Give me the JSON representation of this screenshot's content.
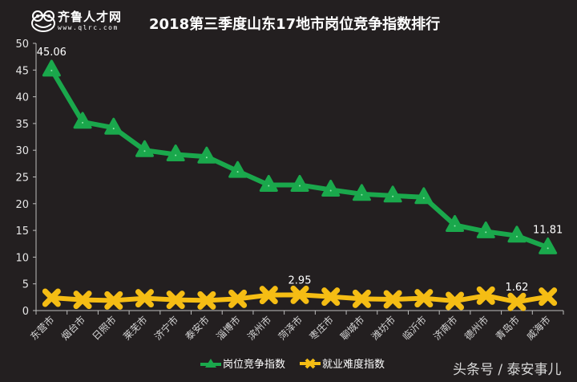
{
  "header": {
    "logo_name": "齐鲁人才网",
    "logo_url": "www.qlrc.com",
    "title": "2018第三季度山东17地市岗位竞争指数排行"
  },
  "watermark": "头条号 / 泰安事儿",
  "legend": [
    {
      "label": "岗位竞争指数",
      "color": "#1aa84c",
      "marker": "triangle"
    },
    {
      "label": "就业难度指数",
      "color": "#f5bd14",
      "marker": "x"
    }
  ],
  "chart_data": {
    "type": "line",
    "title": "2018第三季度山东17地市岗位竞争指数排行",
    "xlabel": "",
    "ylabel": "",
    "ylim": [
      0,
      50
    ],
    "yticks": [
      0,
      5,
      10,
      15,
      20,
      25,
      30,
      35,
      40,
      45,
      50
    ],
    "grid": false,
    "legend_position": "bottom",
    "categories": [
      "东营市",
      "烟台市",
      "日照市",
      "莱芜市",
      "济宁市",
      "泰安市",
      "淄博市",
      "滨州市",
      "菏泽市",
      "枣庄市",
      "聊城市",
      "潍坊市",
      "临沂市",
      "济南市",
      "德州市",
      "青岛市",
      "威海市"
    ],
    "series": [
      {
        "name": "岗位竞争指数",
        "color": "#1aa84c",
        "values": [
          45.06,
          35.3,
          34.2,
          30.0,
          29.2,
          28.8,
          26.1,
          23.5,
          23.5,
          22.6,
          21.8,
          21.5,
          21.2,
          16.0,
          14.8,
          14.0,
          11.81
        ]
      },
      {
        "name": "就业难度指数",
        "color": "#f5bd14",
        "values": [
          2.4,
          2.0,
          1.9,
          2.3,
          2.0,
          1.9,
          2.2,
          2.9,
          2.95,
          2.6,
          2.2,
          2.1,
          2.3,
          1.8,
          2.8,
          1.62,
          2.6
        ]
      }
    ],
    "annotations": [
      {
        "series": "岗位竞争指数",
        "category": "东营市",
        "text": "45.06"
      },
      {
        "series": "岗位竞争指数",
        "category": "威海市",
        "text": "11.81"
      },
      {
        "series": "就业难度指数",
        "category": "菏泽市",
        "text": "2.95"
      },
      {
        "series": "就业难度指数",
        "category": "青岛市",
        "text": "1.62"
      }
    ]
  }
}
